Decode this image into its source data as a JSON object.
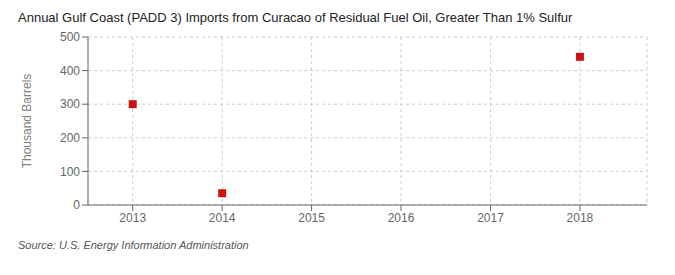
{
  "chart_data": {
    "type": "scatter",
    "title": "Annual Gulf Coast (PADD 3) Imports from Curacao of Residual Fuel Oil, Greater Than 1% Sulfur",
    "y_label": "Thousand Barrels",
    "annotations": [
      "Source: U.S. Energy Information Administration"
    ],
    "x": [
      2013,
      2014,
      2015,
      2016,
      2017,
      2018
    ],
    "values": [
      300,
      35,
      null,
      null,
      null,
      441
    ],
    "color": "#cc1111",
    "marker": "square",
    "xlim": [
      2012.5,
      2018.75
    ],
    "xticks": [
      2013,
      2014,
      2015,
      2016,
      2017,
      2018
    ],
    "ylim": [
      0,
      500
    ],
    "yticks": [
      0,
      100,
      200,
      300,
      400,
      500
    ],
    "grid": true
  }
}
